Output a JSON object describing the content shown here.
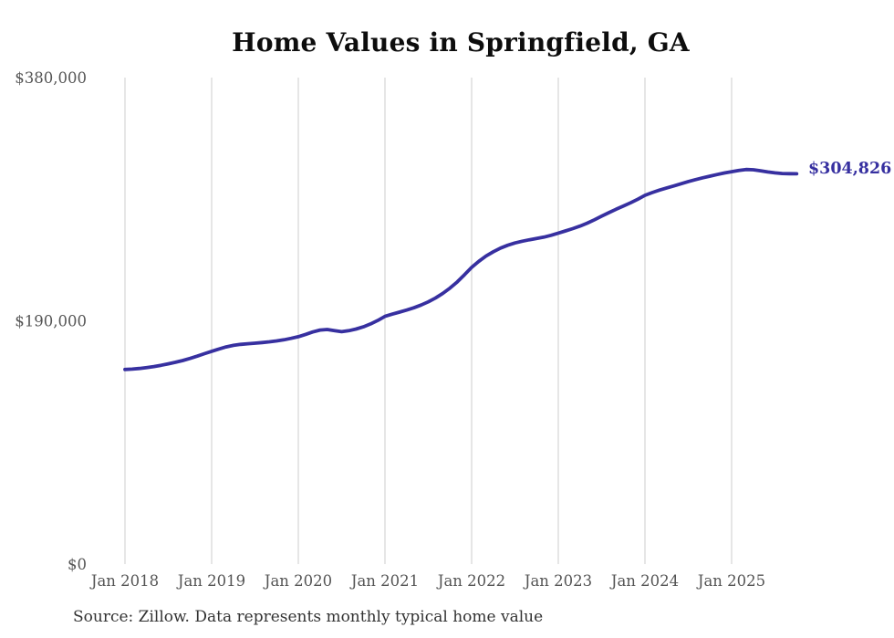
{
  "chart": {
    "title": "Home Values in Springfield, GA",
    "source": "Source: Zillow. Data represents monthly typical home value",
    "end_label": "$304,826",
    "line_color": "#3730a0",
    "grid_color": "#cccccc",
    "axis_label_color": "#555555"
  },
  "chart_data": {
    "type": "line",
    "title": "Home Values in Springfield, GA",
    "xlabel": "",
    "ylabel": "",
    "x_start": "Jan 2018",
    "x_interval": "monthly",
    "x_ticks": [
      "Jan 2018",
      "Jan 2019",
      "Jan 2020",
      "Jan 2021",
      "Jan 2022",
      "Jan 2023",
      "Jan 2024",
      "Jan 2025"
    ],
    "y_ticks": [
      {
        "label": "$0",
        "value": 0
      },
      {
        "label": "$190,000",
        "value": 190000
      },
      {
        "label": "$380,000",
        "value": 380000
      }
    ],
    "ylim": [
      0,
      380000
    ],
    "grid": "vertical-only",
    "legend": false,
    "annotation": {
      "text": "$304,826",
      "value": 304826,
      "position": "line-end"
    },
    "series": [
      {
        "name": "Typical home value",
        "values": [
          152000,
          152300,
          152800,
          153500,
          154300,
          155300,
          156400,
          157600,
          159000,
          160600,
          162400,
          164300,
          166200,
          168000,
          169600,
          170800,
          171600,
          172100,
          172500,
          173000,
          173600,
          174300,
          175200,
          176300,
          177600,
          179400,
          181300,
          182800,
          183200,
          182400,
          181500,
          182300,
          183600,
          185300,
          187600,
          190300,
          193500,
          195200,
          196800,
          198400,
          200200,
          202300,
          204800,
          207800,
          211400,
          215600,
          220400,
          225900,
          231800,
          236500,
          240600,
          244000,
          246800,
          249000,
          250800,
          252200,
          253300,
          254300,
          255400,
          256800,
          258500,
          260200,
          262000,
          264000,
          266300,
          268900,
          271800,
          274500,
          277100,
          279600,
          282200,
          285000,
          288000,
          290200,
          292100,
          293800,
          295400,
          297100,
          298800,
          300300,
          301700,
          303000,
          304300,
          305500,
          306500,
          307500,
          308200,
          308000,
          307200,
          306300,
          305600,
          305100,
          304900,
          304826
        ]
      }
    ]
  }
}
